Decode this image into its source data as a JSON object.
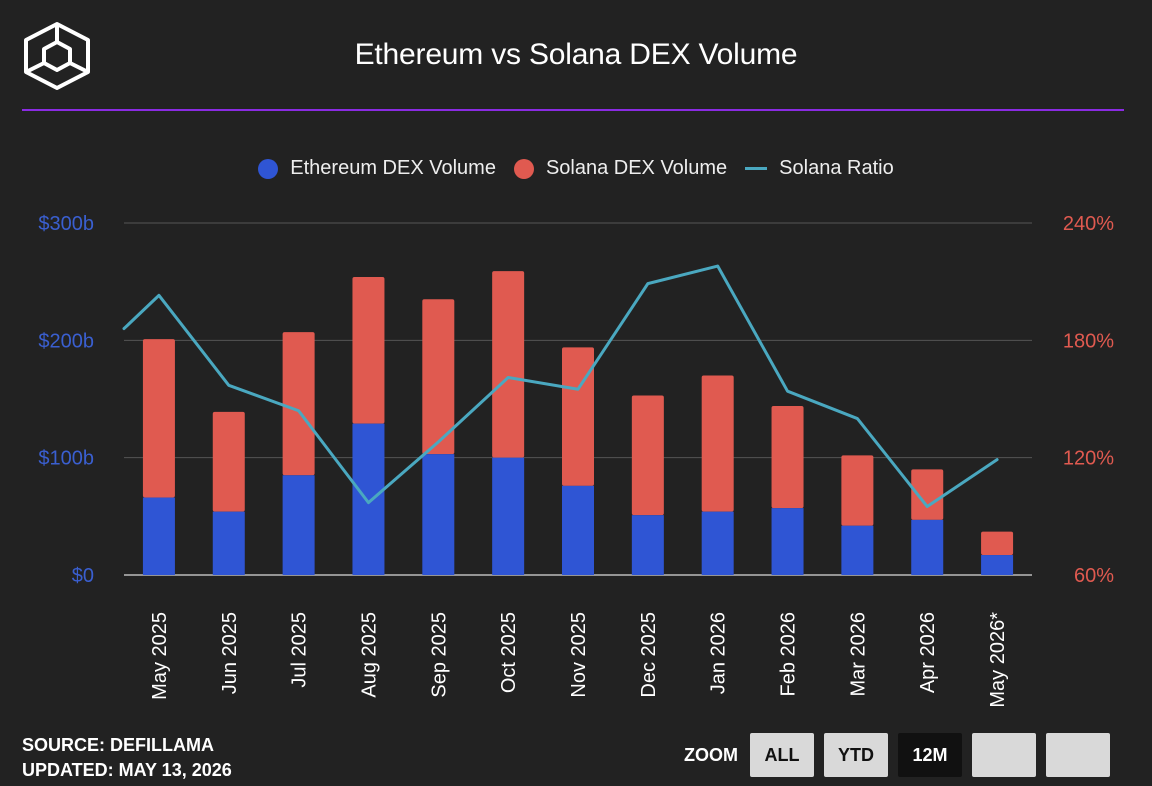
{
  "header": {
    "title": "Ethereum vs Solana DEX Volume"
  },
  "colors": {
    "background": "#222222",
    "ethereum": "#2f55d4",
    "solana": "#e05a50",
    "ratio": "#4aa8c0",
    "divider": "#8a2be2",
    "left_axis": "#3a5fd0",
    "right_axis": "#e05a50"
  },
  "chart_data": {
    "type": "bar",
    "stacked": true,
    "categories": [
      "May 2025",
      "Jun 2025",
      "Jul 2025",
      "Aug 2025",
      "Sep 2025",
      "Oct 2025",
      "Nov 2025",
      "Dec 2025",
      "Jan 2026",
      "Feb 2026",
      "Mar 2026",
      "Apr 2026",
      "May 2026*"
    ],
    "series": [
      {
        "name": "Ethereum DEX Volume",
        "axis": "left",
        "kind": "bar",
        "values": [
          66,
          54,
          85,
          129,
          103,
          100,
          76,
          51,
          54,
          57,
          42,
          47,
          17
        ]
      },
      {
        "name": "Solana DEX Volume",
        "axis": "left",
        "kind": "bar",
        "values": [
          135,
          85,
          122,
          125,
          132,
          159,
          118,
          102,
          116,
          87,
          60,
          43,
          20
        ]
      },
      {
        "name": "Solana Ratio",
        "axis": "right",
        "kind": "line",
        "x": [
          "Apr 2025",
          "May 2025",
          "Jun 2025",
          "Jul 2025",
          "Aug 2025",
          "Sep 2025",
          "Oct 2025",
          "Nov 2025",
          "Dec 2025",
          "Jan 2026",
          "Feb 2026",
          "Mar 2026",
          "Apr 2026",
          "May 2026*"
        ],
        "values": [
          186,
          203,
          157,
          144,
          97,
          128,
          161,
          155,
          209,
          218,
          154,
          140,
          95,
          119
        ]
      }
    ],
    "y_left": {
      "ticks": [
        "$0",
        "$100b",
        "$200b",
        "$300b"
      ],
      "tick_values": [
        0,
        100,
        200,
        300
      ],
      "range": [
        0,
        300
      ]
    },
    "y_right": {
      "ticks": [
        "60%",
        "120%",
        "180%",
        "240%"
      ],
      "tick_values": [
        60,
        120,
        180,
        240
      ],
      "range": [
        60,
        240
      ]
    },
    "grid": true,
    "legend": "top-center"
  },
  "footer": {
    "source": "SOURCE: DEFILLAMA",
    "updated": "UPDATED: MAY 13, 2026"
  },
  "zoom": {
    "label": "ZOOM",
    "buttons": [
      {
        "label": "ALL",
        "active": false
      },
      {
        "label": "YTD",
        "active": false
      },
      {
        "label": "12M",
        "active": true
      },
      {
        "label": "",
        "active": false
      },
      {
        "label": "",
        "active": false
      }
    ]
  }
}
